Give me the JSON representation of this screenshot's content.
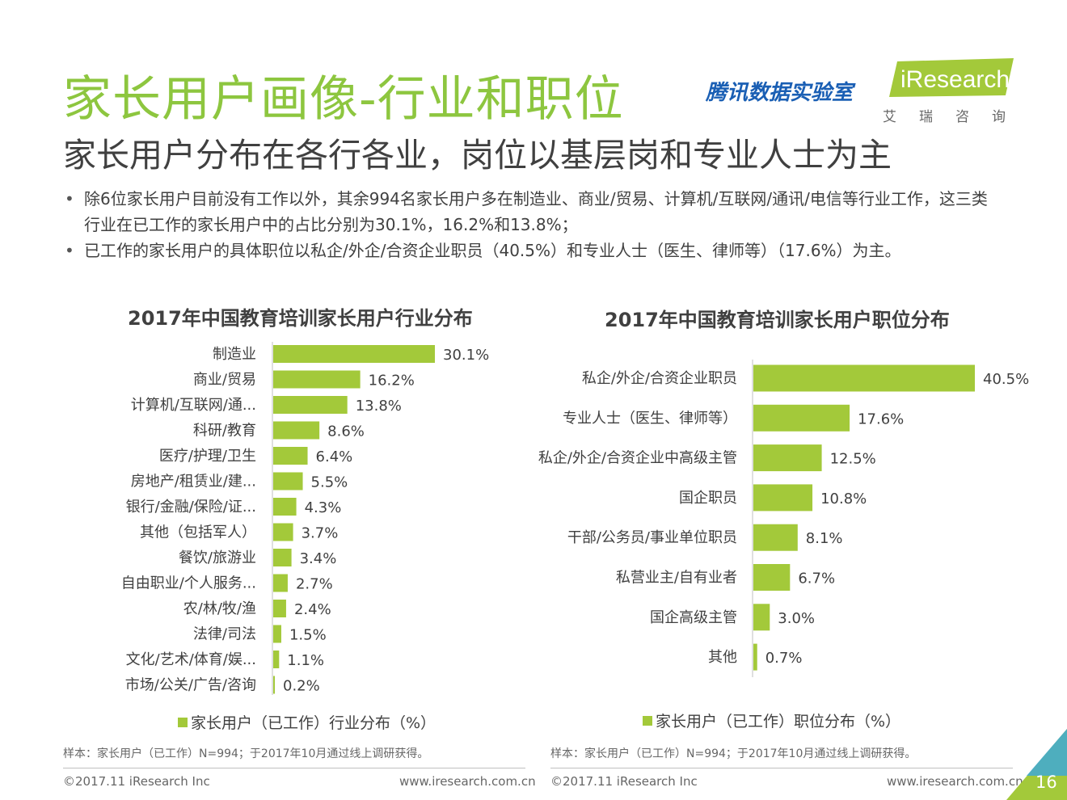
{
  "header": {
    "title": "家长用户画像-行业和职位",
    "subtitle": "家长用户分布在各行各业，岗位以基层岗和专业人士为主",
    "logo_tencent": "腾讯数据实验室",
    "logo_iresearch": "iResearch",
    "logo_iresearch_cn": "艾瑞咨询"
  },
  "bullets": [
    "除6位家长用户目前没有工作以外，其余994名家长用户多在制造业、商业/贸易、计算机/互联网/通讯/电信等行业工作，这三类行业在已工作的家长用户中的占比分别为30.1%，16.2%和13.8%；",
    "已工作的家长用户的具体职位以私企/外企/合资企业职员（40.5%）和专业人士（医生、律师等）（17.6%）为主。"
  ],
  "colors": {
    "accent": "#8dc63f",
    "bar": "#a3c93a",
    "brand_blue": "#1a5fb4"
  },
  "chart_data": [
    {
      "type": "bar",
      "orientation": "horizontal",
      "title": "2017年中国教育培训家长用户行业分布",
      "categories": [
        "制造业",
        "商业/贸易",
        "计算机/互联网/通...",
        "科研/教育",
        "医疗/护理/卫生",
        "房地产/租赁业/建...",
        "银行/金融/保险/证...",
        "其他（包括军人）",
        "餐饮/旅游业",
        "自由职业/个人服务...",
        "农/林/牧/渔",
        "法律/司法",
        "文化/艺术/体育/娱...",
        "市场/公关/广告/咨询"
      ],
      "values": [
        30.1,
        16.2,
        13.8,
        8.6,
        6.4,
        5.5,
        4.3,
        3.7,
        3.4,
        2.7,
        2.4,
        1.5,
        1.1,
        0.2
      ],
      "value_labels": [
        "30.1%",
        "16.2%",
        "13.8%",
        "8.6%",
        "6.4%",
        "5.5%",
        "4.3%",
        "3.7%",
        "3.4%",
        "2.7%",
        "2.4%",
        "1.5%",
        "1.1%",
        "0.2%"
      ],
      "series_name": "家长用户（已工作）行业分布（%）",
      "legend": "bottom"
    },
    {
      "type": "bar",
      "orientation": "horizontal",
      "title": "2017年中国教育培训家长用户职位分布",
      "categories": [
        "私企/外企/合资企业职员",
        "专业人士（医生、律师等）",
        "私企/外企/合资企业中高级主管",
        "国企职员",
        "干部/公务员/事业单位职员",
        "私营业主/自有业者",
        "国企高级主管",
        "其他"
      ],
      "values": [
        40.5,
        17.6,
        12.5,
        10.8,
        8.1,
        6.7,
        3.0,
        0.7
      ],
      "value_labels": [
        "40.5%",
        "17.6%",
        "12.5%",
        "10.8%",
        "8.1%",
        "6.7%",
        "3.0%",
        "0.7%"
      ],
      "series_name": "家长用户（已工作）职位分布（%）",
      "legend": "bottom"
    }
  ],
  "notes": {
    "left": "样本：家长用户（已工作）N=994；于2017年10月通过线上调研获得。",
    "right": "样本：家长用户（已工作）N=994；于2017年10月通过线上调研获得。"
  },
  "footer": {
    "copyright_left": "©2017.11 iResearch Inc",
    "url_left": "www.iresearch.com.cn",
    "copyright_right": "©2017.11 iResearch Inc",
    "url_right": "www.iresearch.com.cn",
    "page_number": "16"
  }
}
